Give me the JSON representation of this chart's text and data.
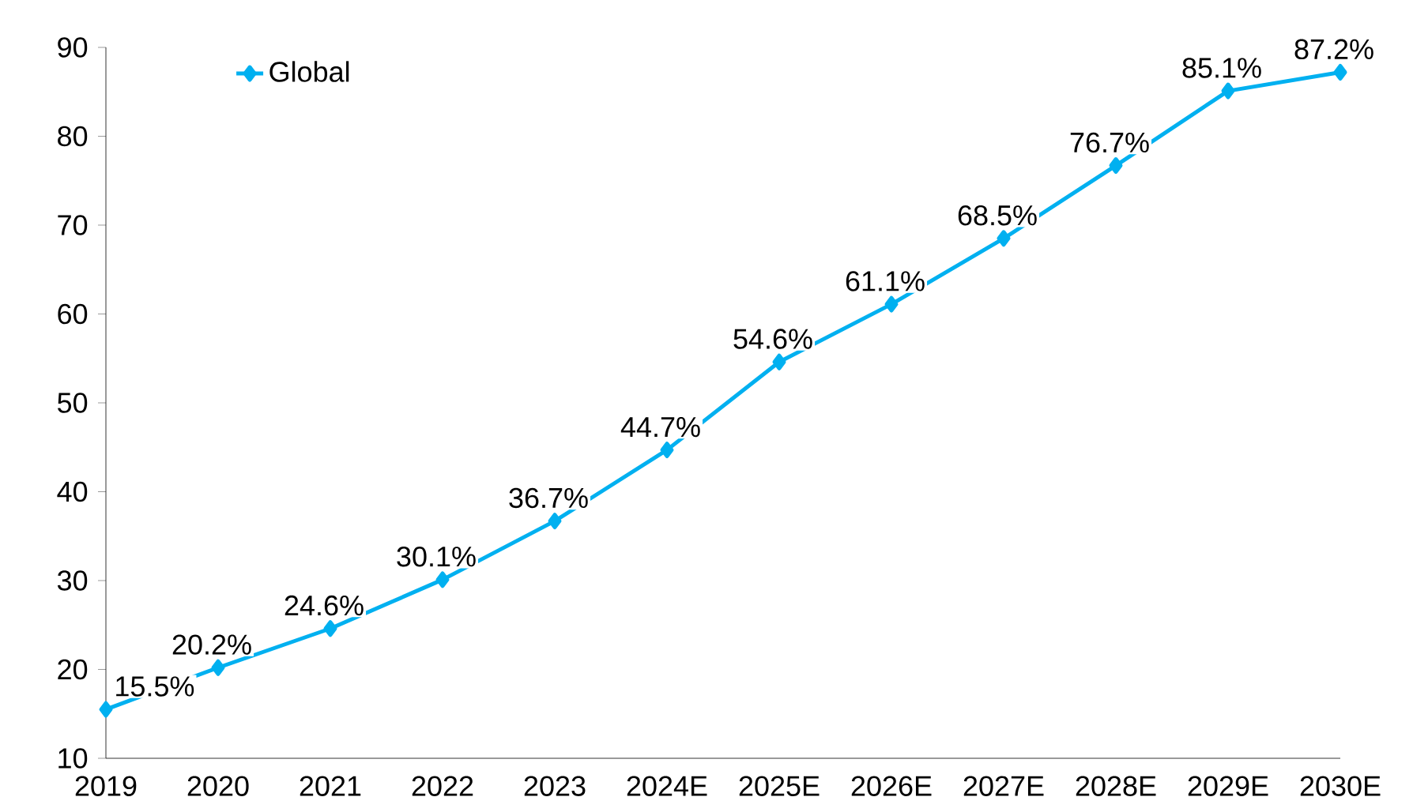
{
  "chart_data": {
    "type": "line",
    "categories": [
      "2019",
      "2020",
      "2021",
      "2022",
      "2023",
      "2024E",
      "2025E",
      "2026E",
      "2027E",
      "2028E",
      "2029E",
      "2030E"
    ],
    "series": [
      {
        "name": "Global",
        "color": "#00b0f0",
        "values": [
          15.5,
          20.2,
          24.6,
          30.1,
          36.7,
          44.7,
          54.6,
          61.1,
          68.5,
          76.7,
          85.1,
          87.2
        ],
        "value_labels": [
          "15.5%",
          "20.2%",
          "24.6%",
          "30.1%",
          "36.7%",
          "44.7%",
          "54.6%",
          "61.1%",
          "68.5%",
          "76.7%",
          "85.1%",
          "87.2%"
        ]
      }
    ],
    "ylim": [
      10,
      90
    ],
    "yticks": [
      10,
      20,
      30,
      40,
      50,
      60,
      70,
      80,
      90
    ],
    "grid": false,
    "legend": "top left",
    "marker": "diamond",
    "line_style": "solid"
  }
}
